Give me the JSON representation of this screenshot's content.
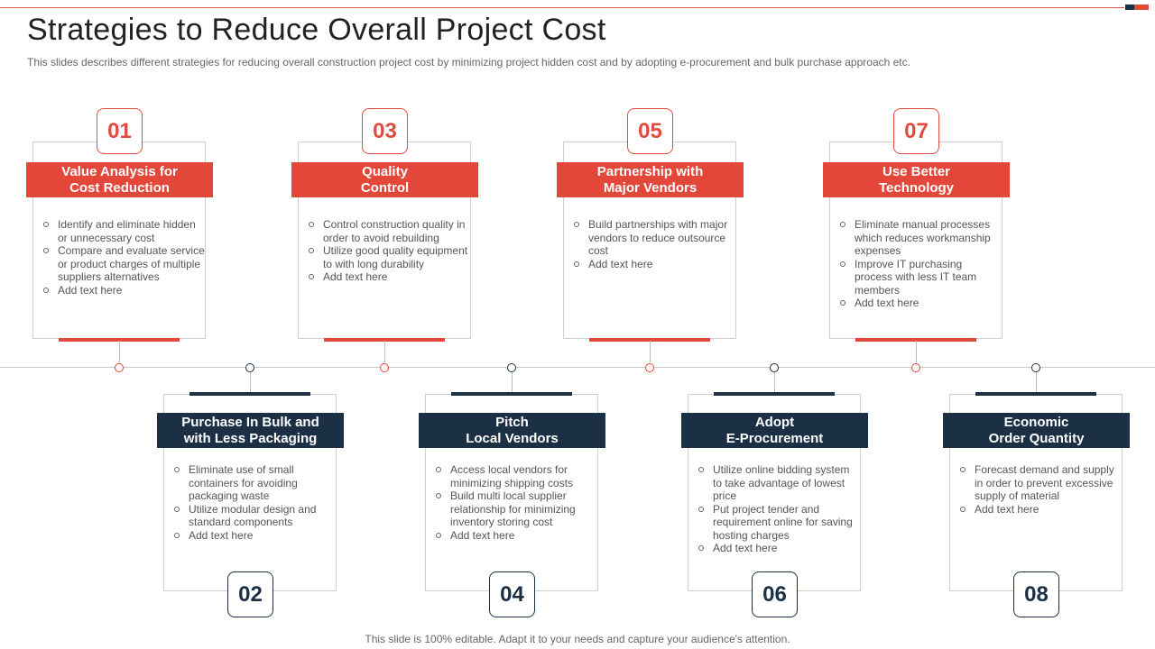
{
  "slide": {
    "title": "Strategies to Reduce Overall Project Cost",
    "subtitle": "This slides describes different strategies for reducing overall construction project cost by minimizing project hidden cost and by adopting e-procurement and bulk purchase approach etc.",
    "footer": "This slide is 100% editable. Adapt it to your needs and capture your audience's attention."
  },
  "colors": {
    "accent_red": "#e3473a",
    "accent_navy": "#1b2f45"
  },
  "top_cards": [
    {
      "number": "01",
      "title_line1": "Value Analysis for",
      "title_line2": "Cost Reduction",
      "items": [
        "Identify and eliminate hidden or unnecessary cost",
        "Compare and evaluate service or product charges of multiple suppliers alternatives",
        "Add text  here"
      ]
    },
    {
      "number": "03",
      "title_line1": "Quality",
      "title_line2": "Control",
      "items": [
        "Control construction quality in order to avoid rebuilding",
        "Utilize good quality equipment to with long durability",
        "Add text  here"
      ]
    },
    {
      "number": "05",
      "title_line1": "Partnership with",
      "title_line2": "Major Vendors",
      "items": [
        "Build partnerships with major vendors to reduce outsource cost",
        "Add text  here"
      ]
    },
    {
      "number": "07",
      "title_line1": "Use Better",
      "title_line2": "Technology",
      "items": [
        "Eliminate manual processes which reduces workmanship expenses",
        "Improve IT purchasing process with less IT team members",
        "Add text  here"
      ]
    }
  ],
  "bottom_cards": [
    {
      "number": "02",
      "title_line1": "Purchase In Bulk and",
      "title_line2": "with Less Packaging",
      "items": [
        "Eliminate use of small containers for avoiding packaging waste",
        "Utilize modular design and standard components",
        "Add text  here"
      ]
    },
    {
      "number": "04",
      "title_line1": "Pitch",
      "title_line2": "Local Vendors",
      "items": [
        "Access local vendors for minimizing shipping costs",
        "Build multi local supplier relationship for minimizing inventory storing cost",
        "Add text  here"
      ]
    },
    {
      "number": "06",
      "title_line1": "Adopt",
      "title_line2": "E-Procurement",
      "items": [
        "Utilize online bidding system to take advantage of lowest price",
        "Put project tender and requirement online for saving hosting charges",
        "Add text  here"
      ]
    },
    {
      "number": "08",
      "title_line1": "Economic",
      "title_line2": "Order Quantity",
      "items": [
        "Forecast demand and supply in order to prevent excessive supply of material",
        "Add text  here"
      ]
    }
  ]
}
